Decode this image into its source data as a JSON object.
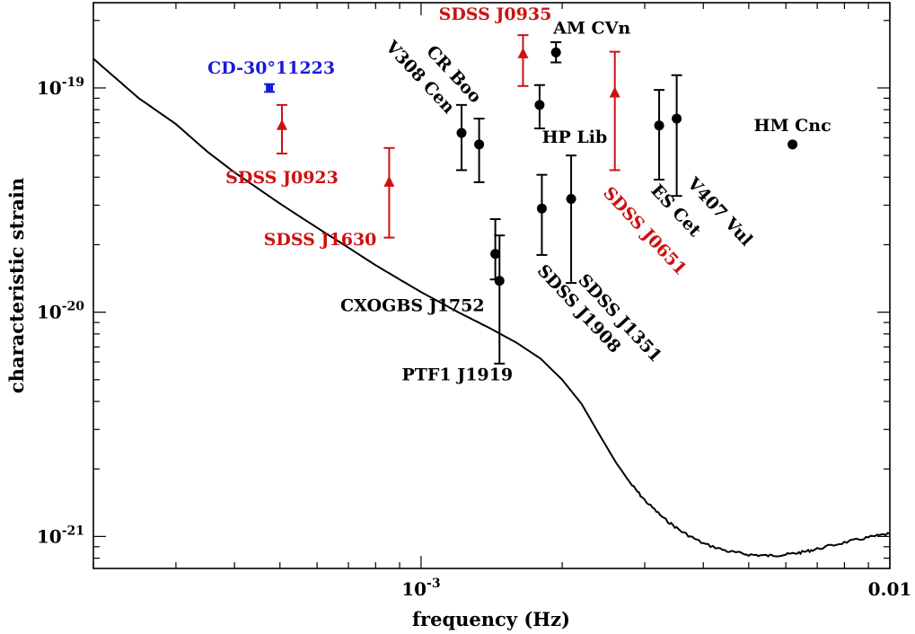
{
  "chart_data": {
    "type": "scatter",
    "title": "",
    "xlabel": "frequency (Hz)",
    "ylabel": "characteristic strain",
    "xscale": "log",
    "yscale": "log",
    "xlim": [
      0.0002,
      0.01
    ],
    "ylim": [
      7.2e-22,
      2.4e-19
    ],
    "x_tick_labels": [
      {
        "value": 0.001,
        "label": "10",
        "exp": "-3"
      },
      {
        "value": 0.01,
        "label": "0.01",
        "exp": ""
      }
    ],
    "y_tick_labels": [
      {
        "value": 1e-21,
        "label": "10",
        "exp": "-21"
      },
      {
        "value": 1e-20,
        "label": "10",
        "exp": "-20"
      },
      {
        "value": 1e-19,
        "label": "10",
        "exp": "-19"
      }
    ],
    "grid": false,
    "colors": {
      "black": "#000000",
      "red": "#cc1111",
      "blue": "#1a1adb"
    },
    "sensitivity_curve": {
      "name": "sensitivity curve",
      "points": [
        [
          0.0002,
          1.35e-19
        ],
        [
          0.00025,
          9e-20
        ],
        [
          0.0003,
          6.9e-20
        ],
        [
          0.00035,
          5.2e-20
        ],
        [
          0.0004,
          4.2e-20
        ],
        [
          0.00045,
          3.55e-20
        ],
        [
          0.0005,
          3.05e-20
        ],
        [
          0.0006,
          2.38e-20
        ],
        [
          0.0007,
          1.94e-20
        ],
        [
          0.0008,
          1.62e-20
        ],
        [
          0.0009,
          1.4e-20
        ],
        [
          0.001,
          1.23e-20
        ],
        [
          0.0012,
          1e-20
        ],
        [
          0.0014,
          8.5e-21
        ],
        [
          0.0016,
          7.3e-21
        ],
        [
          0.0018,
          6.2e-21
        ],
        [
          0.002,
          5e-21
        ],
        [
          0.0022,
          3.9e-21
        ],
        [
          0.0024,
          2.85e-21
        ],
        [
          0.0026,
          2.15e-21
        ],
        [
          0.0028,
          1.72e-21
        ],
        [
          0.003,
          1.45e-21
        ],
        [
          0.0033,
          1.2e-21
        ],
        [
          0.0036,
          1.05e-21
        ],
        [
          0.004,
          9.3e-22
        ],
        [
          0.0045,
          8.6e-22
        ],
        [
          0.005,
          8.3e-22
        ],
        [
          0.0055,
          8.2e-22
        ],
        [
          0.006,
          8.3e-22
        ],
        [
          0.0065,
          8.5e-22
        ],
        [
          0.007,
          8.8e-22
        ],
        [
          0.008,
          9.4e-22
        ],
        [
          0.009,
          9.9e-22
        ],
        [
          0.01,
          1.03e-21
        ]
      ]
    },
    "series": [
      {
        "label": "CD-30°11223",
        "color": "blue",
        "marker": "square",
        "x": 0.000475,
        "y": 1e-19,
        "y_low": 9.6e-20,
        "y_high": 1.04e-19
      },
      {
        "label": "SDSS J0923",
        "color": "red",
        "marker": "triangle",
        "x": 0.000505,
        "y": 6.8e-20,
        "y_low": 5.1e-20,
        "y_high": 8.4e-20
      },
      {
        "label": "SDSS J1630",
        "color": "red",
        "marker": "triangle",
        "x": 0.000855,
        "y": 3.8e-20,
        "y_low": 2.15e-20,
        "y_high": 5.4e-20
      },
      {
        "label": "SDSS J0935",
        "color": "red",
        "marker": "triangle",
        "x": 0.00165,
        "y": 1.42e-19,
        "y_low": 1.02e-19,
        "y_high": 1.72e-19
      },
      {
        "label": "SDSS J0651",
        "color": "red",
        "marker": "triangle",
        "x": 0.00259,
        "y": 9.5e-20,
        "y_low": 4.3e-20,
        "y_high": 1.45e-19
      },
      {
        "label": "CR Boo",
        "color": "black",
        "marker": "circle",
        "x": 0.00122,
        "y": 6.3e-20,
        "y_low": 4.3e-20,
        "y_high": 8.4e-20
      },
      {
        "label": "V308 Cen",
        "color": "black",
        "marker": "circle",
        "x": 0.00133,
        "y": 5.6e-20,
        "y_low": 3.8e-20,
        "y_high": 7.3e-20
      },
      {
        "label": "AM CVn",
        "color": "black",
        "marker": "circle",
        "x": 0.00194,
        "y": 1.44e-19,
        "y_low": 1.3e-19,
        "y_high": 1.6e-19
      },
      {
        "label": "HP Lib",
        "color": "black",
        "marker": "circle",
        "x": 0.00179,
        "y": 8.4e-20,
        "y_low": 6.6e-20,
        "y_high": 1.03e-19
      },
      {
        "label": "CXOGBS J1752",
        "color": "black",
        "marker": "circle",
        "x": 0.00144,
        "y": 1.82e-20,
        "y_low": 1.4e-20,
        "y_high": 2.6e-20
      },
      {
        "label": "PTF1 J1919",
        "color": "black",
        "marker": "circle",
        "x": 0.00147,
        "y": 1.38e-20,
        "y_low": 5.9e-21,
        "y_high": 2.2e-20
      },
      {
        "label": "SDSS J1908",
        "color": "black",
        "marker": "circle",
        "x": 0.00181,
        "y": 2.9e-20,
        "y_low": 1.8e-20,
        "y_high": 4.1e-20
      },
      {
        "label": "SDSS J1351",
        "color": "black",
        "marker": "circle",
        "x": 0.00209,
        "y": 3.2e-20,
        "y_low": 1.35e-20,
        "y_high": 5e-20
      },
      {
        "label": "ES Cet",
        "color": "black",
        "marker": "circle",
        "x": 0.00322,
        "y": 6.8e-20,
        "y_low": 3.9e-20,
        "y_high": 9.8e-20
      },
      {
        "label": "V407 Vul",
        "color": "black",
        "marker": "circle",
        "x": 0.00351,
        "y": 7.3e-20,
        "y_low": 3.3e-20,
        "y_high": 1.14e-19
      },
      {
        "label": "HM Cnc",
        "color": "black",
        "marker": "circle",
        "x": 0.0062,
        "y": 5.6e-20,
        "y_low": 5.6e-20,
        "y_high": 5.6e-20
      }
    ]
  }
}
